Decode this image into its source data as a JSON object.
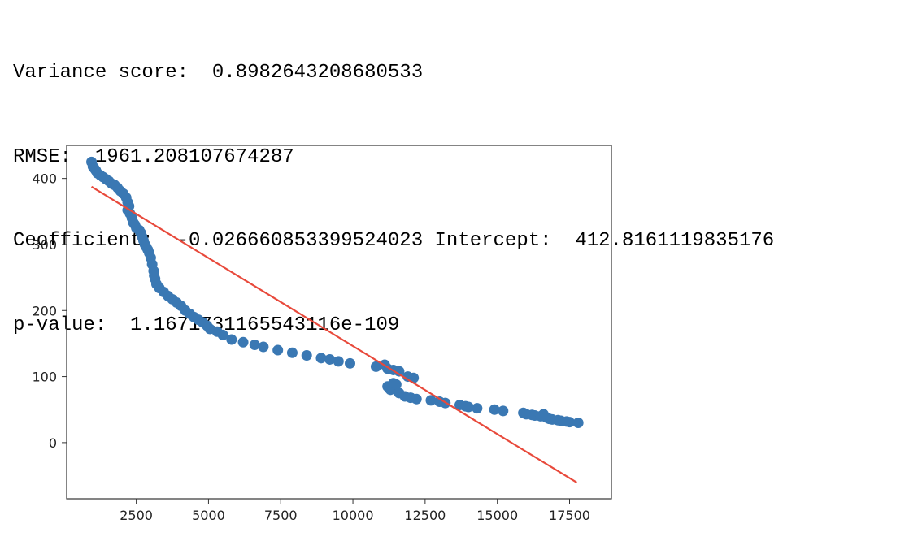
{
  "output": {
    "variance_label": "Variance score:",
    "variance_value": "0.8982643208680533",
    "rmse_label": "RMSE:",
    "rmse_value": "1961.208107674287",
    "coef_label": "Ceofficient:",
    "coef_value": "-0.026660853399524023",
    "intercept_label": "Intercept:",
    "intercept_value": "412.8161119835176",
    "pvalue_label": "p-value:",
    "pvalue_value": "1.1671731165543116e-109"
  },
  "chart_data": {
    "type": "scatter",
    "title": "",
    "xlabel": "",
    "ylabel": "",
    "xlim": [
      90,
      18950
    ],
    "ylim": [
      -85,
      450
    ],
    "grid": false,
    "xticks": [
      2500,
      5000,
      7500,
      10000,
      12500,
      15000,
      17500
    ],
    "yticks": [
      0,
      100,
      200,
      300,
      400
    ],
    "colors": {
      "points": "#3a78b3",
      "line": "#e8493b"
    },
    "series": [
      {
        "type": "scatter",
        "x": [
          950,
          1000,
          1050,
          1100,
          1150,
          1250,
          1350,
          1450,
          1550,
          1650,
          1750,
          1850,
          1950,
          2050,
          2150,
          2200,
          2250,
          2200,
          2280,
          2350,
          2400,
          2450,
          2500,
          2600,
          2650,
          2700,
          2750,
          2800,
          2850,
          2900,
          2950,
          3000,
          3050,
          3100,
          3120,
          3150,
          3200,
          3300,
          3450,
          3600,
          3750,
          3900,
          4050,
          4200,
          4350,
          4500,
          4650,
          4800,
          4950,
          5050,
          5300,
          5500,
          5800,
          6200,
          6600,
          6900,
          7400,
          7900,
          8400,
          8900,
          9200,
          9500,
          9900,
          10800,
          11100,
          11200,
          11400,
          11600,
          11200,
          11300,
          11400,
          11500,
          11600,
          11800,
          12000,
          12200,
          11900,
          12100,
          12700,
          13000,
          13200,
          13700,
          13900,
          14000,
          14300,
          14900,
          15200,
          15900,
          16000,
          16200,
          16300,
          16500,
          16600,
          16700,
          16800,
          16900,
          17100,
          17200,
          17400,
          17500,
          17800
        ],
        "y": [
          425,
          418,
          415,
          412,
          408,
          405,
          402,
          399,
          396,
          392,
          390,
          386,
          381,
          377,
          371,
          364,
          358,
          352,
          347,
          340,
          333,
          330,
          325,
          322,
          318,
          312,
          306,
          300,
          296,
          292,
          287,
          280,
          270,
          260,
          253,
          248,
          240,
          234,
          228,
          222,
          217,
          212,
          207,
          200,
          195,
          190,
          186,
          182,
          177,
          172,
          168,
          163,
          156,
          152,
          148,
          145,
          140,
          136,
          132,
          128,
          126,
          123,
          120,
          115,
          118,
          112,
          110,
          108,
          85,
          80,
          90,
          88,
          75,
          70,
          68,
          66,
          100,
          98,
          64,
          62,
          60,
          57,
          55,
          54,
          52,
          50,
          48,
          45,
          43,
          42,
          41,
          40,
          43,
          38,
          36,
          35,
          34,
          33,
          32,
          31,
          30
        ]
      },
      {
        "type": "line",
        "x": [
          950,
          17750
        ],
        "y": [
          387.5,
          -60.4
        ]
      }
    ]
  }
}
